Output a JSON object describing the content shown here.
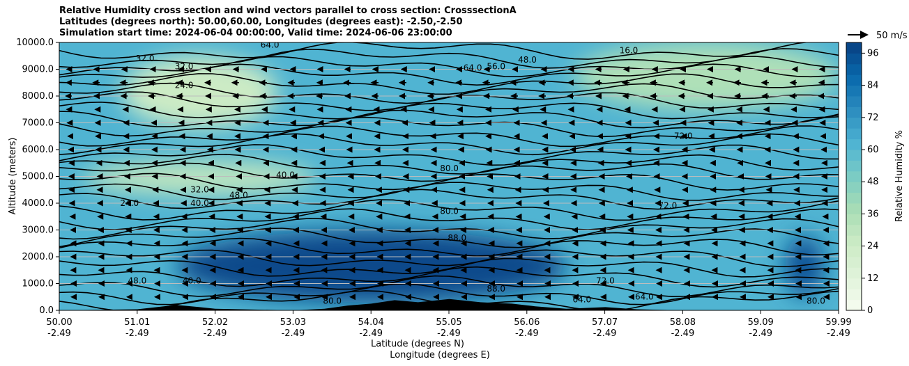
{
  "titles": [
    "Relative Humidity cross section and wind vectors parallel to cross section: CrosssectionA",
    "Latitudes (degrees north): 50.00,60.00, Longitudes (degrees east): -2.50,-2.50",
    "Simulation start time: 2024-06-04 00:00:00, Valid time: 2024-06-06 23:00:00"
  ],
  "chart_data": {
    "type": "heatmap",
    "ylabel": "Altitude (meters)",
    "xlabel_line1": "Latitude (degrees N)",
    "xlabel_line2": "Longitude (degrees E)",
    "x_range": [
      50.0,
      59.99
    ],
    "y_range": [
      0,
      10000
    ],
    "y_ticks": [
      "0.0",
      "1000.0",
      "2000.0",
      "3000.0",
      "4000.0",
      "5000.0",
      "6000.0",
      "7000.0",
      "8000.0",
      "9000.0",
      "10000.0"
    ],
    "x_ticks": [
      {
        "lat": "50.00",
        "lon": "-2.49"
      },
      {
        "lat": "51.01",
        "lon": "-2.49"
      },
      {
        "lat": "52.02",
        "lon": "-2.49"
      },
      {
        "lat": "53.03",
        "lon": "-2.49"
      },
      {
        "lat": "54.04",
        "lon": "-2.49"
      },
      {
        "lat": "55.05",
        "lon": "-2.49"
      },
      {
        "lat": "56.06",
        "lon": "-2.49"
      },
      {
        "lat": "57.07",
        "lon": "-2.49"
      },
      {
        "lat": "58.08",
        "lon": "-2.49"
      },
      {
        "lat": "59.09",
        "lon": "-2.49"
      },
      {
        "lat": "59.99",
        "lon": "-2.49"
      }
    ],
    "grid": "horizontal",
    "colorbar": {
      "label": "Relative Humidity %",
      "range": [
        0,
        100
      ],
      "ticks": [
        "0",
        "12",
        "24",
        "36",
        "48",
        "60",
        "72",
        "84",
        "96"
      ],
      "colormap": "GnBu"
    },
    "vector_key": {
      "label": "50 m/s",
      "speed_ms": 50
    },
    "humidity_regions": [
      {
        "rh": 30,
        "lat_range": [
          50.3,
          53.3
        ],
        "alt_range": [
          4300,
          5600
        ],
        "desc": "dry tongue"
      },
      {
        "rh": 25,
        "lat_range": [
          50.8,
          52.8
        ],
        "alt_range": [
          6800,
          9500
        ],
        "desc": "dry upper-left"
      },
      {
        "rh": 35,
        "lat_range": [
          56.6,
          59.99
        ],
        "alt_range": [
          7500,
          10000
        ],
        "desc": "dry upper-right"
      },
      {
        "rh": 97,
        "lat_range": [
          51.5,
          56.5
        ],
        "alt_range": [
          300,
          3000
        ],
        "desc": "saturated low layer"
      },
      {
        "rh": 94,
        "lat_range": [
          59.3,
          59.8
        ],
        "alt_range": [
          500,
          2800
        ],
        "desc": "moist column"
      }
    ],
    "contour_levels": [
      "16.0",
      "24.0",
      "32.0",
      "40.0",
      "48.0",
      "56.0",
      "64.0",
      "72.0",
      "80.0",
      "88.0",
      "96.0"
    ],
    "contour_labels": [
      {
        "text": "16.0",
        "lat": 57.3,
        "alt": 9600
      },
      {
        "text": "48.0",
        "lat": 56.0,
        "alt": 9250
      },
      {
        "text": "64.0",
        "lat": 55.3,
        "alt": 8950
      },
      {
        "text": "56.0",
        "lat": 55.6,
        "alt": 9000
      },
      {
        "text": "64.0",
        "lat": 52.7,
        "alt": 9800
      },
      {
        "text": "32.0",
        "lat": 51.1,
        "alt": 9300
      },
      {
        "text": "32.0",
        "lat": 51.6,
        "alt": 9000
      },
      {
        "text": "24.0",
        "lat": 51.6,
        "alt": 8300
      },
      {
        "text": "72.0",
        "lat": 58.0,
        "alt": 6400
      },
      {
        "text": "40.0",
        "lat": 52.9,
        "alt": 4950
      },
      {
        "text": "32.0",
        "lat": 51.8,
        "alt": 4400
      },
      {
        "text": "24.0",
        "lat": 50.9,
        "alt": 3900
      },
      {
        "text": "40.0",
        "lat": 51.8,
        "alt": 3900
      },
      {
        "text": "48.0",
        "lat": 52.3,
        "alt": 4200
      },
      {
        "text": "72.0",
        "lat": 57.8,
        "alt": 3800
      },
      {
        "text": "80.0",
        "lat": 55.0,
        "alt": 3600
      },
      {
        "text": "88.0",
        "lat": 55.1,
        "alt": 2600
      },
      {
        "text": "48.0",
        "lat": 51.0,
        "alt": 1000
      },
      {
        "text": "40.0",
        "lat": 51.7,
        "alt": 1000
      },
      {
        "text": "80.0",
        "lat": 53.5,
        "alt": 250
      },
      {
        "text": "88.0",
        "lat": 55.6,
        "alt": 700
      },
      {
        "text": "64.0",
        "lat": 56.7,
        "alt": 300
      },
      {
        "text": "64.0",
        "lat": 57.5,
        "alt": 400
      },
      {
        "text": "72.0",
        "lat": 57.0,
        "alt": 1000
      },
      {
        "text": "80.0",
        "lat": 55.0,
        "alt": 5200
      },
      {
        "text": "80.0",
        "lat": 59.7,
        "alt": 250
      }
    ],
    "terrain": [
      {
        "lat": 50.0,
        "alt": 0
      },
      {
        "lat": 51.0,
        "alt": 40
      },
      {
        "lat": 51.5,
        "alt": 200
      },
      {
        "lat": 51.8,
        "alt": 120
      },
      {
        "lat": 52.0,
        "alt": 60
      },
      {
        "lat": 53.0,
        "alt": 0
      },
      {
        "lat": 53.4,
        "alt": 60
      },
      {
        "lat": 53.7,
        "alt": 180
      },
      {
        "lat": 54.0,
        "alt": 250
      },
      {
        "lat": 54.3,
        "alt": 380
      },
      {
        "lat": 54.6,
        "alt": 300
      },
      {
        "lat": 55.0,
        "alt": 420
      },
      {
        "lat": 55.4,
        "alt": 300
      },
      {
        "lat": 55.8,
        "alt": 250
      },
      {
        "lat": 56.1,
        "alt": 150
      },
      {
        "lat": 56.5,
        "alt": 60
      },
      {
        "lat": 57.0,
        "alt": 120
      },
      {
        "lat": 57.4,
        "alt": 40
      },
      {
        "lat": 58.0,
        "alt": 0
      },
      {
        "lat": 59.99,
        "alt": 0
      }
    ],
    "wind_rows": [
      {
        "alt": 9000,
        "u": -14
      },
      {
        "alt": 8500,
        "u": -18
      },
      {
        "alt": 8000,
        "u": -17
      },
      {
        "alt": 7500,
        "u": -13
      },
      {
        "alt": 7000,
        "u": -11
      },
      {
        "alt": 6500,
        "u": -10
      },
      {
        "alt": 6000,
        "u": -9
      },
      {
        "alt": 5500,
        "u": -8
      },
      {
        "alt": 5000,
        "u": -7
      },
      {
        "alt": 4500,
        "u": -6
      },
      {
        "alt": 4000,
        "u": -5
      },
      {
        "alt": 3500,
        "u": -4
      },
      {
        "alt": 3000,
        "u": -3
      },
      {
        "alt": 2500,
        "u": -2
      },
      {
        "alt": 2000,
        "u": -2
      },
      {
        "alt": 1500,
        "u": -2
      },
      {
        "alt": 1000,
        "u": -1
      },
      {
        "alt": 500,
        "u": -1
      }
    ]
  }
}
